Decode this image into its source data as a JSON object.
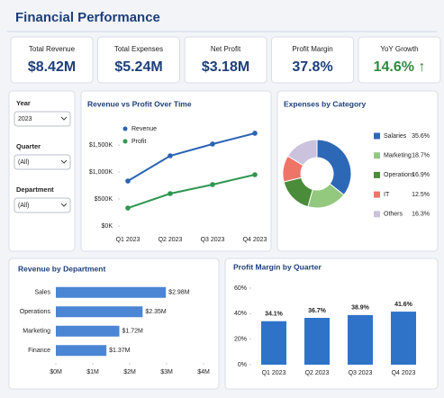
{
  "header": {
    "title": "Financial Performance"
  },
  "kpis": [
    {
      "label": "Total Revenue",
      "value": "$8.42M"
    },
    {
      "label": "Total Expenses",
      "value": "$5.24M"
    },
    {
      "label": "Net Profit",
      "value": "$3.18M"
    },
    {
      "label": "Profit Margin",
      "value": "37.8%"
    },
    {
      "label": "YoY Growth",
      "value": "14.6% ↑"
    }
  ],
  "filters": [
    {
      "label": "Year",
      "value": "2023"
    },
    {
      "label": "Quarter",
      "value": "(All)"
    },
    {
      "label": "Department",
      "value": "(All)"
    }
  ],
  "chart_data": [
    {
      "type": "line",
      "title": "Revenue vs Profit Over Time",
      "categories": [
        "Q1 2023",
        "Q2 2023",
        "Q3 2023",
        "Q4 2023"
      ],
      "series": [
        {
          "name": "Revenue",
          "color": "#2a62b4",
          "values": [
            833,
            1300,
            1517,
            1717
          ]
        },
        {
          "name": "Profit",
          "color": "#2e9650",
          "values": [
            333,
            600,
            767,
            950
          ]
        }
      ],
      "ylim": [
        0,
        1800
      ],
      "yticks": [
        {
          "value": 0,
          "label": "$0K"
        },
        {
          "value": 500,
          "label": "$500K"
        },
        {
          "value": 1000,
          "label": "$1,000K"
        },
        {
          "value": 1500,
          "label": "$1,500K"
        }
      ]
    },
    {
      "type": "pie",
      "title": "Expenses by Category",
      "categories": [
        "Salaries",
        "Marketing",
        "Operations",
        "IT",
        "Others"
      ],
      "values": [
        35.6,
        18.7,
        16.9,
        12.5,
        16.3
      ],
      "value_labels": [
        "35.6%",
        "18.7%",
        "16.9%",
        "12.5%",
        "16.3%"
      ],
      "colors": [
        "#2d68b6",
        "#93c97f",
        "#4a8c3a",
        "#ef7468",
        "#cbc2dd"
      ]
    },
    {
      "type": "hbar",
      "title": "Revenue by Department",
      "categories": [
        "Sales",
        "Operations",
        "Marketing",
        "Finance"
      ],
      "values": [
        2.98,
        2.35,
        1.72,
        1.37
      ],
      "value_labels": [
        "$2.98M",
        "$2.35M",
        "$1.72M",
        "$1.37M"
      ],
      "color": "#4a86d4",
      "xlim": [
        0,
        4
      ],
      "xticks": [
        {
          "value": 0,
          "label": "$0M"
        },
        {
          "value": 1,
          "label": "$1M"
        },
        {
          "value": 2,
          "label": "$2M"
        },
        {
          "value": 3,
          "label": "$3M"
        },
        {
          "value": 4,
          "label": "$4M"
        }
      ]
    },
    {
      "type": "bar",
      "title": "Profit Margin by Quarter",
      "categories": [
        "Q1 2023",
        "Q2 2023",
        "Q3 2023",
        "Q4 2023"
      ],
      "values": [
        34.1,
        36.7,
        38.9,
        41.6
      ],
      "value_labels": [
        "34.1%",
        "36.7%",
        "38.9%",
        "41.6%"
      ],
      "color": "#2f73c9",
      "ylim": [
        0,
        60
      ],
      "yticks": [
        {
          "value": 0,
          "label": "0%"
        },
        {
          "value": 20,
          "label": "20%"
        },
        {
          "value": 40,
          "label": "40%"
        },
        {
          "value": 60,
          "label": "60%"
        }
      ]
    }
  ]
}
